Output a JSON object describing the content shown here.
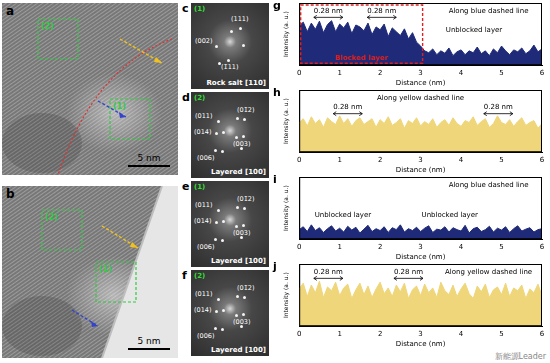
{
  "images": [
    {
      "label": "a",
      "scale_bar": "5 nm",
      "regions": [
        "(1)",
        "(2)"
      ]
    },
    {
      "label": "b",
      "scale_bar": "5 nm",
      "regions": [
        "(1)",
        "(2)"
      ]
    }
  ],
  "ffts": [
    {
      "label": "c",
      "region": "(1)",
      "spots": [
        "(111)",
        "(002)",
        "(1̄11)"
      ],
      "zone": "Rock salt [110]"
    },
    {
      "label": "d",
      "region": "(2)",
      "spots": [
        "(011)",
        "(01̄2)",
        "(014)",
        "(003)",
        "(006)"
      ],
      "zone": "Layered [100]"
    },
    {
      "label": "e",
      "region": "(1)",
      "spots": [
        "(011)",
        "(01̄2)",
        "(014)",
        "(003)",
        "(006)"
      ],
      "zone": "Layered [100]"
    },
    {
      "label": "f",
      "region": "(2)",
      "spots": [
        "(011)",
        "(01̄2)",
        "(014)",
        "(003)",
        "(006)"
      ],
      "zone": "Layered [100]"
    }
  ],
  "chart_data": [
    {
      "panel": "g",
      "type": "area",
      "color": "#1f2b78",
      "x_label": "Distance (nm)",
      "y_label": "Intensity (a. u.)",
      "xlim": [
        0,
        6
      ],
      "xticks": [
        0,
        1,
        2,
        3,
        4,
        5,
        6
      ],
      "ylim": [
        0,
        1.3
      ],
      "tick_labels": "x",
      "grid": false,
      "x": [
        0,
        0.1,
        0.2,
        0.3,
        0.4,
        0.5,
        0.6,
        0.7,
        0.8,
        0.9,
        1,
        1.1,
        1.2,
        1.3,
        1.4,
        1.5,
        1.6,
        1.7,
        1.8,
        1.9,
        2,
        2.1,
        2.2,
        2.3,
        2.4,
        2.5,
        2.6,
        2.7,
        2.8,
        2.9,
        3,
        3.1,
        3.2,
        3.3,
        3.4,
        3.5,
        3.6,
        3.7,
        3.8,
        3.9,
        4,
        4.1,
        4.2,
        4.3,
        4.4,
        4.5,
        4.6,
        4.7,
        4.8,
        4.9,
        5,
        5.1,
        5.2,
        5.3,
        5.4,
        5.5,
        5.6,
        5.7,
        5.8,
        5.9,
        6
      ],
      "values": [
        0.82,
        0.9,
        0.7,
        0.88,
        0.75,
        0.92,
        0.68,
        0.85,
        0.93,
        0.7,
        0.86,
        0.78,
        0.9,
        0.66,
        0.84,
        0.8,
        0.72,
        0.88,
        0.64,
        0.8,
        0.74,
        0.86,
        0.6,
        0.78,
        0.7,
        0.62,
        0.76,
        0.55,
        0.68,
        0.48,
        0.4,
        0.3,
        0.26,
        0.34,
        0.22,
        0.3,
        0.25,
        0.36,
        0.2,
        0.28,
        0.32,
        0.22,
        0.3,
        0.26,
        0.38,
        0.24,
        0.3,
        0.2,
        0.34,
        0.26,
        0.4,
        0.3,
        0.22,
        0.32,
        0.28,
        0.36,
        0.24,
        0.3,
        0.42,
        0.28,
        0.34
      ],
      "annotations": [
        "Along blue dashed line",
        "0.28 nm",
        "0.28 nm",
        "Unblocked layer"
      ],
      "highlight": {
        "text": "Blocked layer",
        "range": [
          0,
          3.05
        ],
        "color": "#e02020"
      }
    },
    {
      "panel": "h",
      "type": "area",
      "color": "#efd67a",
      "x_label": "Distance (nm)",
      "y_label": "Intensity (a. u.)",
      "xlim": [
        0,
        6
      ],
      "xticks": [
        0,
        1,
        2,
        3,
        4,
        5,
        6
      ],
      "ylim": [
        0,
        1.3
      ],
      "tick_labels": "x",
      "grid": false,
      "x": [
        0,
        0.1,
        0.2,
        0.3,
        0.4,
        0.5,
        0.6,
        0.7,
        0.8,
        0.9,
        1,
        1.1,
        1.2,
        1.3,
        1.4,
        1.5,
        1.6,
        1.7,
        1.8,
        1.9,
        2,
        2.1,
        2.2,
        2.3,
        2.4,
        2.5,
        2.6,
        2.7,
        2.8,
        2.9,
        3,
        3.1,
        3.2,
        3.3,
        3.4,
        3.5,
        3.6,
        3.7,
        3.8,
        3.9,
        4,
        4.1,
        4.2,
        4.3,
        4.4,
        4.5,
        4.6,
        4.7,
        4.8,
        4.9,
        5,
        5.1,
        5.2,
        5.3,
        5.4,
        5.5,
        5.6,
        5.7,
        5.8,
        5.9,
        6
      ],
      "values": [
        0.62,
        0.7,
        0.55,
        0.74,
        0.6,
        0.68,
        0.52,
        0.72,
        0.64,
        0.58,
        0.76,
        0.6,
        0.7,
        0.54,
        0.66,
        0.72,
        0.58,
        0.64,
        0.7,
        0.52,
        0.68,
        0.6,
        0.74,
        0.56,
        0.62,
        0.7,
        0.5,
        0.66,
        0.6,
        0.72,
        0.55,
        0.64,
        0.58,
        0.7,
        0.52,
        0.62,
        0.68,
        0.56,
        0.72,
        0.6,
        0.54,
        0.66,
        0.62,
        0.74,
        0.56,
        0.64,
        0.7,
        0.52,
        0.6,
        0.76,
        0.62,
        0.58,
        0.68,
        0.54,
        0.64,
        0.72,
        0.56,
        0.62,
        0.66,
        0.5,
        0.6
      ],
      "annotations": [
        "Along yellow dashed line",
        "0.28 nm",
        "0.28 nm"
      ]
    },
    {
      "panel": "i",
      "type": "area",
      "color": "#1f2b78",
      "x_label": "Distance (nm)",
      "y_label": "Intensity (a. u.)",
      "xlim": [
        0,
        6
      ],
      "xticks": [
        0,
        1,
        2,
        3,
        4,
        5,
        6
      ],
      "ylim": [
        0,
        1.3
      ],
      "tick_labels": "x",
      "grid": false,
      "x": [
        0,
        0.1,
        0.2,
        0.3,
        0.4,
        0.5,
        0.6,
        0.7,
        0.8,
        0.9,
        1,
        1.1,
        1.2,
        1.3,
        1.4,
        1.5,
        1.6,
        1.7,
        1.8,
        1.9,
        2,
        2.1,
        2.2,
        2.3,
        2.4,
        2.5,
        2.6,
        2.7,
        2.8,
        2.9,
        3,
        3.1,
        3.2,
        3.3,
        3.4,
        3.5,
        3.6,
        3.7,
        3.8,
        3.9,
        4,
        4.1,
        4.2,
        4.3,
        4.4,
        4.5,
        4.6,
        4.7,
        4.8,
        4.9,
        5,
        5.1,
        5.2,
        5.3,
        5.4,
        5.5,
        5.6,
        5.7,
        5.8,
        5.9,
        6
      ],
      "values": [
        0.2,
        0.26,
        0.16,
        0.3,
        0.18,
        0.24,
        0.14,
        0.22,
        0.28,
        0.17,
        0.23,
        0.15,
        0.27,
        0.19,
        0.25,
        0.13,
        0.21,
        0.29,
        0.16,
        0.22,
        0.18,
        0.26,
        0.14,
        0.24,
        0.2,
        0.3,
        0.15,
        0.22,
        0.18,
        0.25,
        0.16,
        0.23,
        0.28,
        0.14,
        0.21,
        0.19,
        0.26,
        0.15,
        0.24,
        0.2,
        0.17,
        0.29,
        0.13,
        0.22,
        0.25,
        0.16,
        0.2,
        0.27,
        0.15,
        0.23,
        0.19,
        0.26,
        0.14,
        0.22,
        0.28,
        0.17,
        0.21,
        0.24,
        0.15,
        0.2,
        0.22
      ],
      "annotations": [
        "Along blue dashed line",
        "Unblocked layer",
        "Unblocked layer"
      ]
    },
    {
      "panel": "j",
      "type": "area",
      "color": "#efd67a",
      "x_label": "Distance (nm)",
      "y_label": "Intensity (a. u.)",
      "xlim": [
        0,
        6
      ],
      "xticks": [
        0,
        1,
        2,
        3,
        4,
        5,
        6
      ],
      "ylim": [
        0,
        1.3
      ],
      "tick_labels": "x",
      "grid": false,
      "x": [
        0,
        0.1,
        0.2,
        0.3,
        0.4,
        0.5,
        0.6,
        0.7,
        0.8,
        0.9,
        1,
        1.1,
        1.2,
        1.3,
        1.4,
        1.5,
        1.6,
        1.7,
        1.8,
        1.9,
        2,
        2.1,
        2.2,
        2.3,
        2.4,
        2.5,
        2.6,
        2.7,
        2.8,
        2.9,
        3,
        3.1,
        3.2,
        3.3,
        3.4,
        3.5,
        3.6,
        3.7,
        3.8,
        3.9,
        4,
        4.1,
        4.2,
        4.3,
        4.4,
        4.5,
        4.6,
        4.7,
        4.8,
        4.9,
        5,
        5.1,
        5.2,
        5.3,
        5.4,
        5.5,
        5.6,
        5.7,
        5.8,
        5.9,
        6
      ],
      "values": [
        0.78,
        0.9,
        0.62,
        0.86,
        0.7,
        0.94,
        0.6,
        0.82,
        0.74,
        0.92,
        0.64,
        0.8,
        0.88,
        0.58,
        0.76,
        0.9,
        0.66,
        0.84,
        0.6,
        0.78,
        0.92,
        0.68,
        0.8,
        0.62,
        0.86,
        0.72,
        0.9,
        0.58,
        0.76,
        0.84,
        0.64,
        0.88,
        0.7,
        0.8,
        0.6,
        0.92,
        0.74,
        0.66,
        0.86,
        0.62,
        0.78,
        0.9,
        0.68,
        0.58,
        0.84,
        0.72,
        0.88,
        0.6,
        0.76,
        0.82,
        0.66,
        0.9,
        0.62,
        0.8,
        0.74,
        0.86,
        0.58,
        0.78,
        0.7,
        0.88,
        0.64
      ],
      "annotations": [
        "Along yellow dashed line",
        "0.28 nm",
        "0.28 nm"
      ]
    }
  ],
  "watermark": "新能源Leader"
}
